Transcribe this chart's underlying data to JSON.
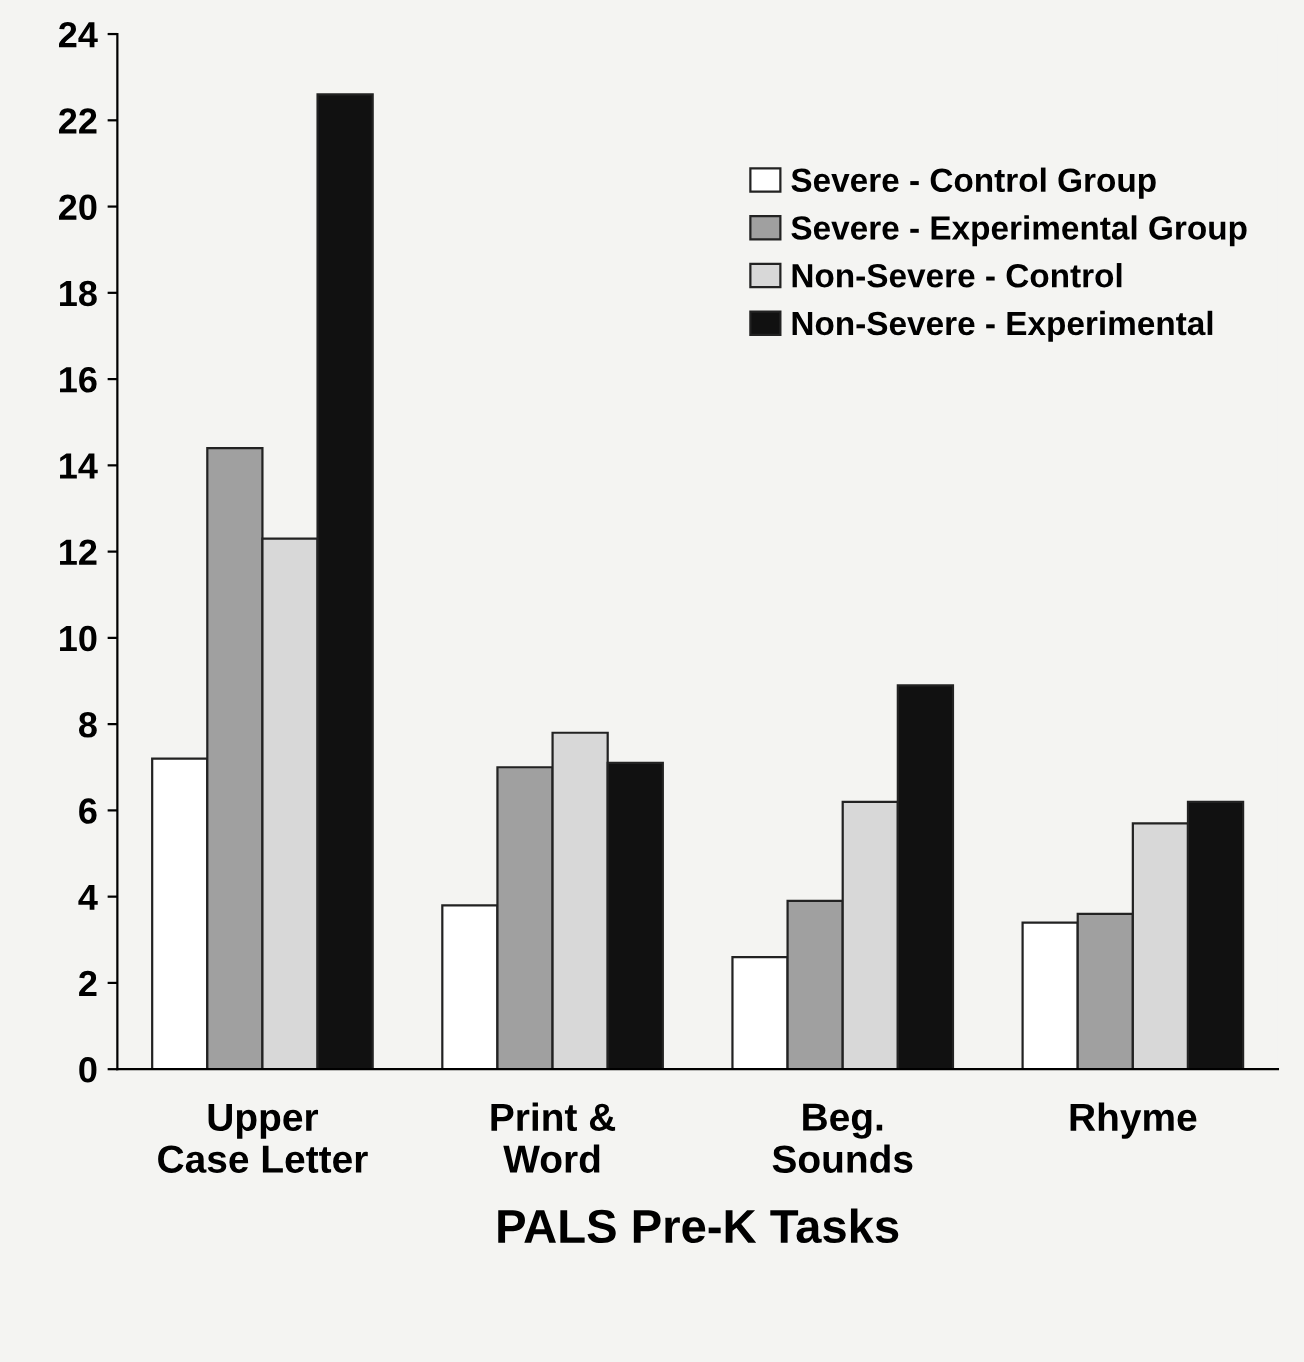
{
  "chart_data": {
    "type": "bar",
    "xlabel": "PALS Pre-K Tasks",
    "categories": [
      "Upper\nCase Letter",
      "Print &\nWord",
      "Beg.\nSounds",
      "Rhyme"
    ],
    "series": [
      {
        "name": "Severe - Control Group",
        "color": "#ffffff",
        "values": [
          7.2,
          3.8,
          2.6,
          3.4
        ]
      },
      {
        "name": "Severe - Experimental Group",
        "color": "#a0a0a0",
        "values": [
          14.4,
          7.0,
          3.9,
          3.6
        ]
      },
      {
        "name": "Non-Severe - Control",
        "color": "#d8d8d8",
        "values": [
          12.3,
          7.8,
          6.2,
          5.7
        ]
      },
      {
        "name": "Non-Severe - Experimental",
        "color": "#111111",
        "values": [
          22.6,
          7.1,
          8.9,
          6.2
        ]
      }
    ],
    "ylim": [
      0,
      24
    ],
    "yticks": [
      0,
      2,
      4,
      6,
      8,
      10,
      12,
      14,
      16,
      18,
      20,
      22,
      24
    ],
    "grid": false,
    "legend": "top right"
  }
}
